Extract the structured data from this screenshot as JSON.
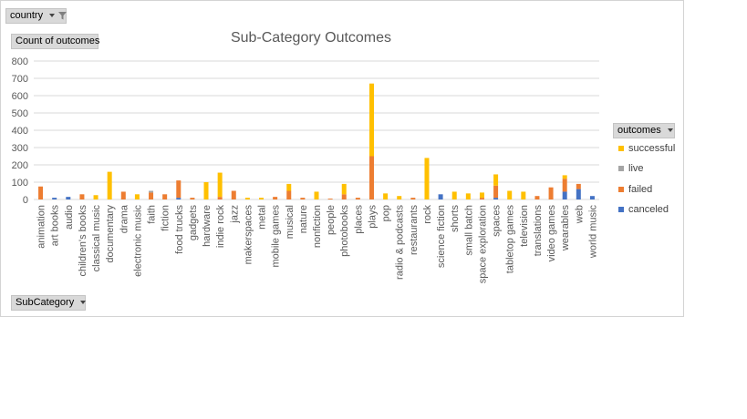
{
  "filter_button": {
    "label": "country",
    "icon": "funnel-icon"
  },
  "value_field_button": {
    "label": "Count of outcomes"
  },
  "axis_field_button": {
    "label": "SubCategory"
  },
  "legend": {
    "title": "outcomes",
    "items": [
      {
        "label": "successful",
        "color": "#ffc000"
      },
      {
        "label": "live",
        "color": "#a5a5a5"
      },
      {
        "label": "failed",
        "color": "#ed7d31"
      },
      {
        "label": "canceled",
        "color": "#4472c4"
      }
    ]
  },
  "chart_data": {
    "type": "bar",
    "stacked": true,
    "title": "Sub-Category Outcomes",
    "xlabel": "",
    "ylabel": "",
    "ylim": [
      0,
      800
    ],
    "yticks": [
      0,
      100,
      200,
      300,
      400,
      500,
      600,
      700,
      800
    ],
    "grid": true,
    "legend_position": "right",
    "categories": [
      "animation",
      "art books",
      "audio",
      "children's books",
      "classical music",
      "documentary",
      "drama",
      "electronic music",
      "faith",
      "fiction",
      "food trucks",
      "gadgets",
      "hardware",
      "indie rock",
      "jazz",
      "makerspaces",
      "metal",
      "mobile games",
      "musical",
      "nature",
      "nonfiction",
      "people",
      "photobooks",
      "places",
      "plays",
      "pop",
      "radio & podcasts",
      "restaurants",
      "rock",
      "science fiction",
      "shorts",
      "small batch",
      "space exploration",
      "spaces",
      "tabletop games",
      "television",
      "translations",
      "video games",
      "wearables",
      "web",
      "world music"
    ],
    "series": [
      {
        "name": "canceled",
        "color": "#4472c4",
        "values": [
          0,
          10,
          15,
          0,
          0,
          0,
          0,
          0,
          0,
          0,
          10,
          0,
          0,
          0,
          0,
          0,
          0,
          0,
          0,
          0,
          0,
          0,
          0,
          0,
          0,
          0,
          0,
          0,
          0,
          30,
          0,
          0,
          0,
          10,
          0,
          0,
          0,
          0,
          45,
          60,
          20
        ]
      },
      {
        "name": "failed",
        "color": "#ed7d31",
        "values": [
          75,
          0,
          0,
          30,
          0,
          0,
          45,
          0,
          40,
          30,
          100,
          10,
          0,
          15,
          50,
          0,
          0,
          15,
          50,
          10,
          0,
          5,
          30,
          10,
          250,
          0,
          0,
          10,
          0,
          0,
          0,
          0,
          10,
          70,
          0,
          0,
          20,
          70,
          75,
          30,
          0
        ]
      },
      {
        "name": "live",
        "color": "#a5a5a5",
        "values": [
          0,
          0,
          0,
          0,
          0,
          0,
          0,
          0,
          10,
          0,
          0,
          0,
          0,
          0,
          0,
          0,
          0,
          0,
          0,
          0,
          0,
          0,
          0,
          0,
          0,
          0,
          0,
          0,
          0,
          0,
          0,
          0,
          0,
          0,
          0,
          0,
          0,
          0,
          0,
          0,
          0
        ]
      },
      {
        "name": "successful",
        "color": "#ffc000",
        "values": [
          0,
          0,
          0,
          0,
          25,
          160,
          0,
          30,
          0,
          0,
          0,
          0,
          100,
          140,
          0,
          10,
          10,
          0,
          40,
          0,
          45,
          0,
          60,
          0,
          420,
          35,
          20,
          0,
          240,
          0,
          45,
          35,
          30,
          65,
          50,
          45,
          0,
          0,
          20,
          0,
          0
        ]
      }
    ]
  }
}
